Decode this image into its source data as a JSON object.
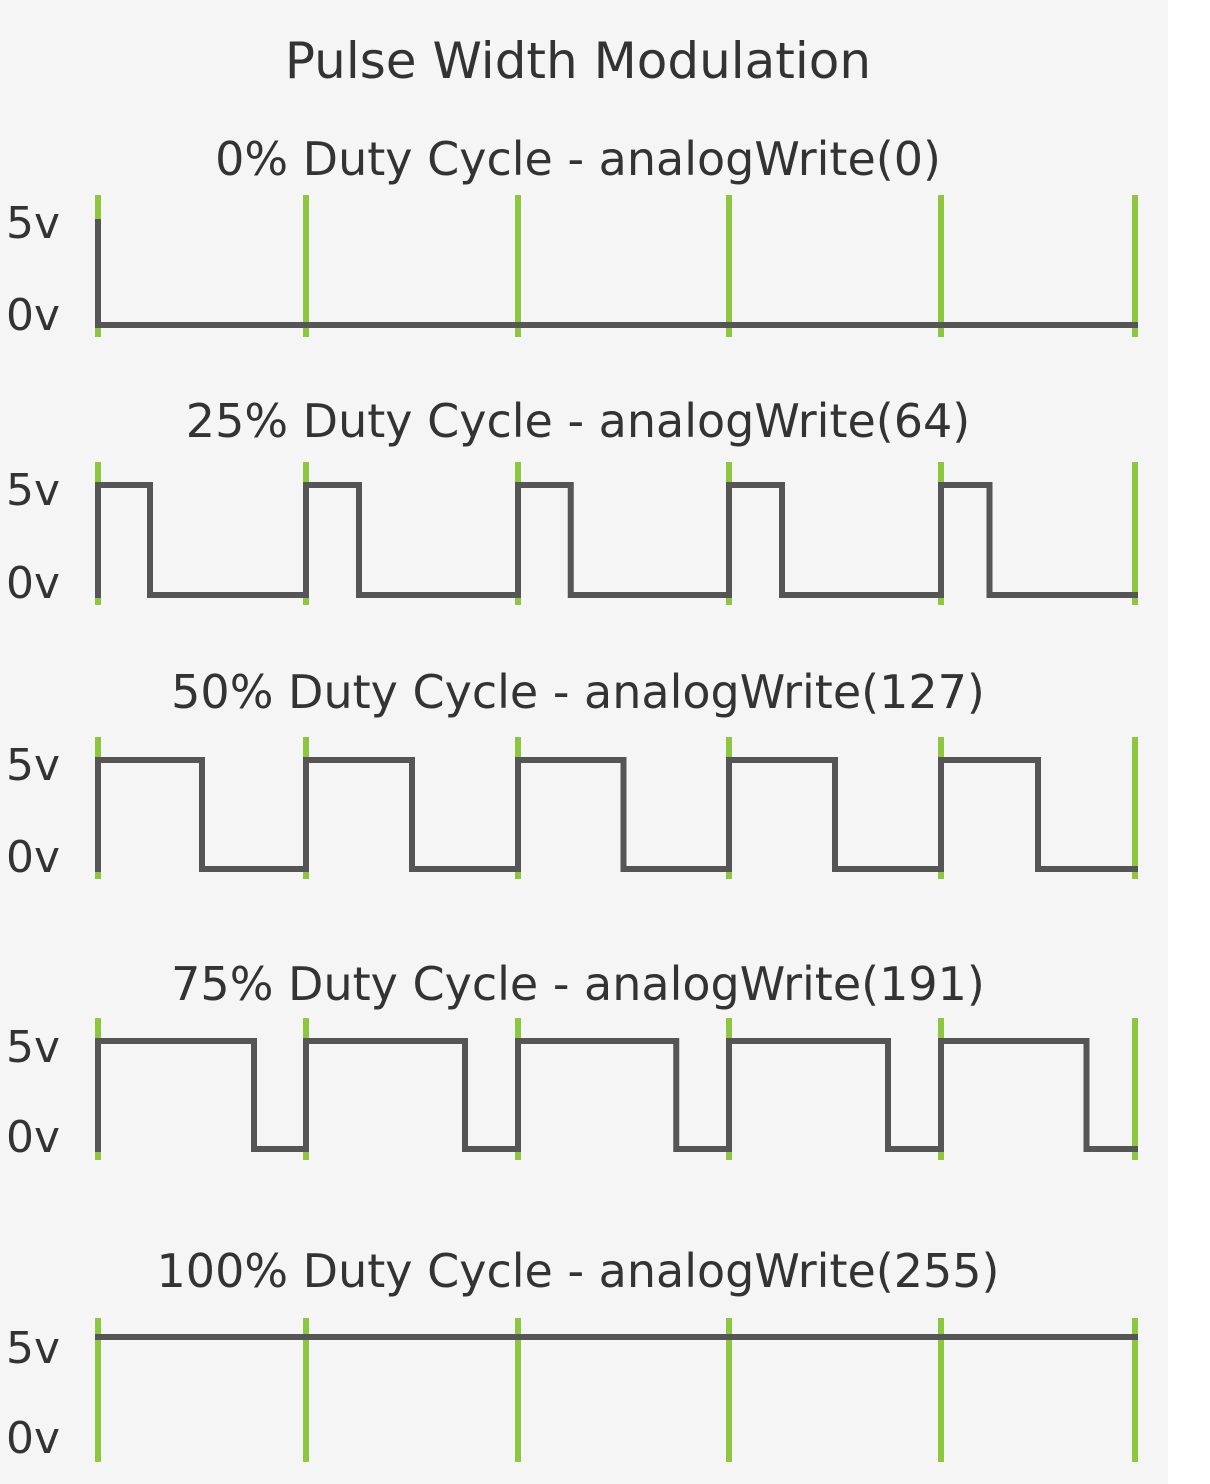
{
  "title": "Pulse Width Modulation",
  "y_labels": {
    "high": "5v",
    "low": "0v"
  },
  "colors": {
    "background": "#f5f5f5",
    "waveform": "#555555",
    "period_marker": "#8dc63f",
    "text": "#333333"
  },
  "chart_data": {
    "type": "step",
    "periods": 5,
    "levels": [
      "0v",
      "5v"
    ],
    "series": [
      {
        "label": "0% Duty Cycle - analogWrite(0)",
        "duty": 0
      },
      {
        "label": "25% Duty Cycle - analogWrite(64)",
        "duty": 0.25
      },
      {
        "label": "50% Duty Cycle - analogWrite(127)",
        "duty": 0.5
      },
      {
        "label": "75% Duty Cycle - analogWrite(191)",
        "duty": 0.75
      },
      {
        "label": "100% Duty Cycle - analogWrite(255)",
        "duty": 1
      }
    ]
  }
}
